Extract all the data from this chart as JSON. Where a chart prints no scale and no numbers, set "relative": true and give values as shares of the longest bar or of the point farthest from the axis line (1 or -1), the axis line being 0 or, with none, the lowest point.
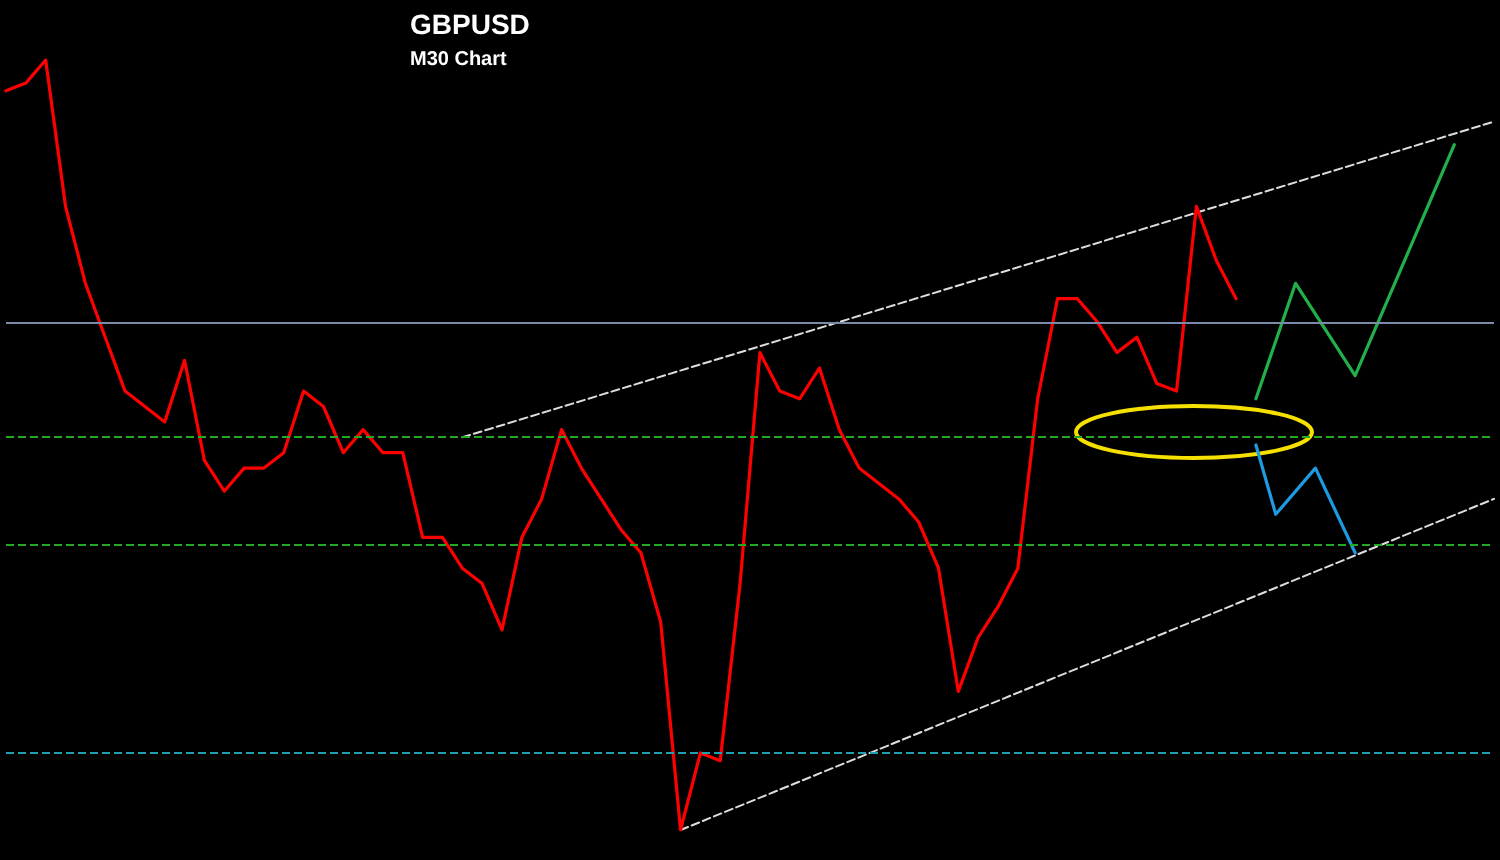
{
  "chart_data": {
    "type": "line",
    "title": "GBPUSD",
    "subtitle": "M30 Chart",
    "relative": true,
    "grid": false,
    "marker": "none",
    "categories": [
      null,
      null,
      null,
      null,
      null,
      null,
      null,
      null,
      null,
      null,
      null,
      null,
      null,
      null,
      null,
      null,
      null,
      null,
      null,
      null,
      null,
      null,
      null,
      null,
      null,
      null,
      null,
      null,
      null,
      null,
      null,
      null,
      null,
      null,
      null,
      null,
      null,
      null,
      null,
      null,
      null,
      null,
      null,
      null,
      null,
      null,
      null,
      null,
      null,
      null,
      null,
      null,
      null,
      null,
      null,
      null,
      null,
      null,
      null,
      null,
      null,
      null,
      null,
      null,
      null,
      null,
      null,
      null,
      null,
      null,
      null,
      null,
      null,
      null,
      null,
      null
    ],
    "series": [
      {
        "color": "#ff0000",
        "line_style": "solid",
        "values": [
          0.96,
          0.97,
          1,
          0.81,
          0.71,
          0.64,
          0.57,
          0.55,
          0.53,
          0.61,
          0.48,
          0.44,
          0.47,
          0.47,
          0.49,
          0.57,
          0.55,
          0.49,
          0.52,
          0.49,
          0.49,
          0.38,
          0.38,
          0.34,
          0.32,
          0.26,
          0.38,
          0.43,
          0.52,
          0.47,
          0.43,
          0.39,
          0.36,
          0.27,
          0,
          0.1,
          0.09,
          0.32,
          0.62,
          0.57,
          0.56,
          0.6,
          0.52,
          0.47,
          0.45,
          0.43,
          0.4,
          0.34,
          0.18,
          0.25,
          0.29,
          0.34,
          0.56,
          0.69,
          0.69,
          0.66,
          0.62,
          0.64,
          0.58,
          0.57,
          0.81,
          0.74,
          0.69,
          null,
          null,
          null,
          null,
          null,
          null,
          null,
          null,
          null,
          null,
          null,
          null,
          null
        ]
      },
      {
        "color": "#22b04a",
        "line_style": "solid",
        "values": [
          null,
          null,
          null,
          null,
          null,
          null,
          null,
          null,
          null,
          null,
          null,
          null,
          null,
          null,
          null,
          null,
          null,
          null,
          null,
          null,
          null,
          null,
          null,
          null,
          null,
          null,
          null,
          null,
          null,
          null,
          null,
          null,
          null,
          null,
          null,
          null,
          null,
          null,
          null,
          null,
          null,
          null,
          null,
          null,
          null,
          null,
          null,
          null,
          null,
          null,
          null,
          null,
          null,
          null,
          null,
          null,
          null,
          null,
          null,
          null,
          null,
          null,
          null,
          0.56,
          null,
          0.71,
          null,
          null,
          0.59,
          null,
          null,
          null,
          null,
          0.89,
          null,
          null
        ]
      },
      {
        "color": "#1e9be0",
        "line_style": "solid",
        "values": [
          null,
          null,
          null,
          null,
          null,
          null,
          null,
          null,
          null,
          null,
          null,
          null,
          null,
          null,
          null,
          null,
          null,
          null,
          null,
          null,
          null,
          null,
          null,
          null,
          null,
          null,
          null,
          null,
          null,
          null,
          null,
          null,
          null,
          null,
          null,
          null,
          null,
          null,
          null,
          null,
          null,
          null,
          null,
          null,
          null,
          null,
          null,
          null,
          null,
          null,
          null,
          null,
          null,
          null,
          null,
          null,
          null,
          null,
          null,
          null,
          null,
          null,
          null,
          0.5,
          0.41,
          null,
          0.47,
          null,
          0.36,
          null,
          null,
          null,
          null,
          null,
          null,
          null
        ]
      },
      {
        "color": "#dddddd",
        "line_style": "dashed",
        "values": [
          null,
          null,
          null,
          null,
          null,
          null,
          null,
          null,
          null,
          null,
          null,
          null,
          null,
          null,
          null,
          null,
          null,
          null,
          null,
          null,
          null,
          null,
          null,
          0.51,
          null,
          null,
          null,
          null,
          null,
          null,
          null,
          null,
          null,
          null,
          null,
          null,
          null,
          null,
          null,
          null,
          null,
          null,
          null,
          null,
          null,
          null,
          null,
          null,
          null,
          null,
          null,
          null,
          null,
          null,
          null,
          null,
          null,
          null,
          null,
          null,
          null,
          null,
          null,
          null,
          null,
          null,
          null,
          null,
          null,
          null,
          null,
          null,
          null,
          null,
          null,
          0.92
        ]
      },
      {
        "color": "#dddddd",
        "line_style": "dashed",
        "values": [
          null,
          null,
          null,
          null,
          null,
          null,
          null,
          null,
          null,
          null,
          null,
          null,
          null,
          null,
          null,
          null,
          null,
          null,
          null,
          null,
          null,
          null,
          null,
          null,
          null,
          null,
          null,
          null,
          null,
          null,
          null,
          null,
          null,
          null,
          0,
          null,
          null,
          null,
          null,
          null,
          null,
          null,
          null,
          null,
          null,
          null,
          null,
          null,
          null,
          null,
          null,
          null,
          null,
          null,
          null,
          null,
          null,
          null,
          null,
          null,
          null,
          null,
          null,
          null,
          null,
          null,
          null,
          null,
          null,
          null,
          null,
          null,
          null,
          null,
          null,
          0.43
        ]
      }
    ],
    "ref_lines": [
      {
        "axis": "y",
        "value": 0.66,
        "color": "#7a8aa8",
        "line_style": "solid"
      },
      {
        "axis": "y",
        "value": 0.51,
        "color": "#22aa22",
        "line_style": "dashed"
      },
      {
        "axis": "y",
        "value": 0.37,
        "color": "#22aa22",
        "line_style": "dashed"
      },
      {
        "axis": "y",
        "value": 0.1,
        "color": "#20a0b0",
        "line_style": "dashed"
      }
    ]
  }
}
